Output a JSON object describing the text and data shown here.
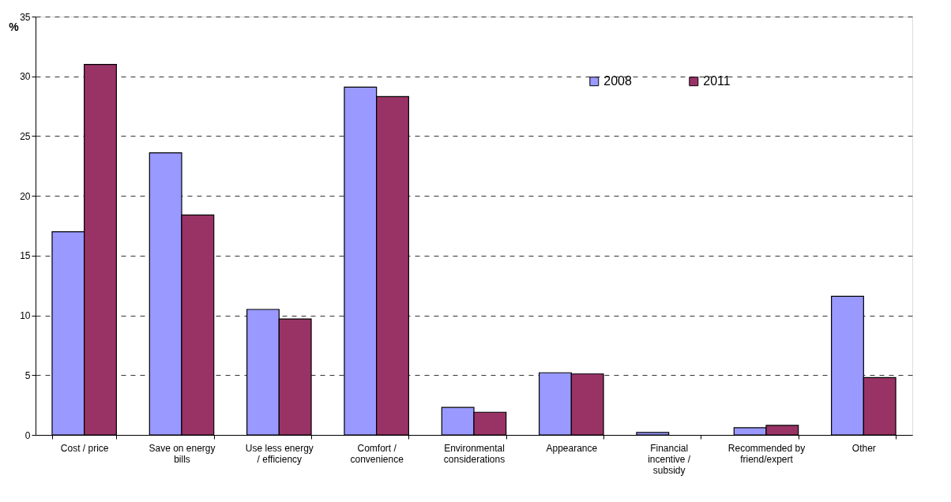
{
  "chart_data": {
    "type": "bar",
    "ylabel": "%",
    "categories": [
      "Cost / price",
      "Save on energy bills",
      "Use less energy / efficiency",
      "Comfort / convenience",
      "Environmental considerations",
      "Appearance",
      "Financial incentive / subsidy",
      "Recommended by friend/expert",
      "Other"
    ],
    "series": [
      {
        "name": "2008",
        "color": "#9999ff",
        "values": [
          17.0,
          23.6,
          10.5,
          29.1,
          2.3,
          5.2,
          0.2,
          0.6,
          11.6
        ]
      },
      {
        "name": "2011",
        "color": "#993366",
        "values": [
          31.0,
          18.4,
          9.7,
          28.3,
          1.9,
          5.1,
          null,
          0.8,
          4.8
        ]
      }
    ],
    "ylim": [
      0,
      35
    ],
    "yticks": [
      0,
      5,
      10,
      15,
      20,
      25,
      30,
      35
    ],
    "grid": "y",
    "legend": "top right"
  }
}
